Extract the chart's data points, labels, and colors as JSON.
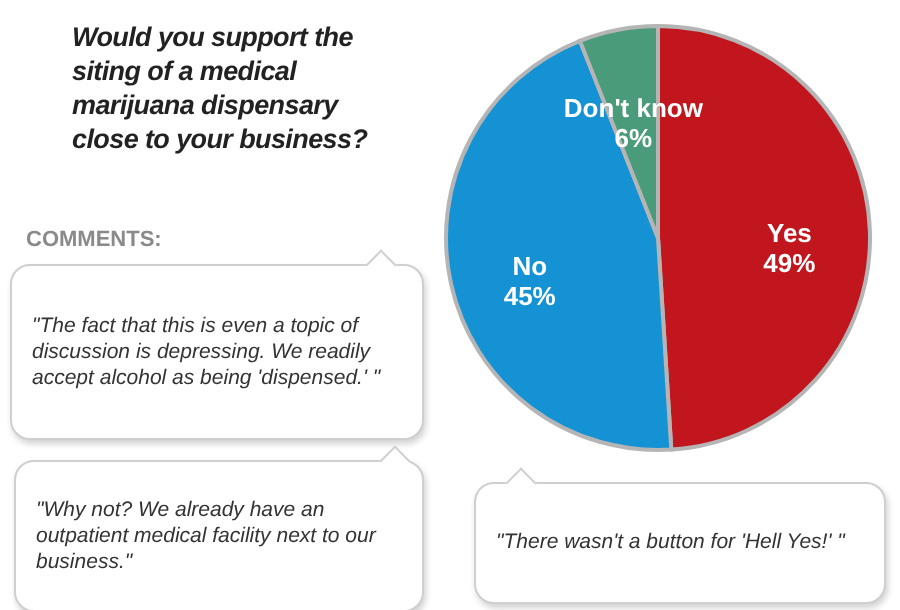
{
  "chart_data": {
    "type": "pie",
    "title": "Would you support the siting of a medical marijuana dispensary close to your business?",
    "categories": [
      "Yes",
      "No",
      "Don't know"
    ],
    "values": [
      49,
      45,
      6
    ],
    "value_labels": [
      "49%",
      "45%",
      "6%"
    ],
    "colors": [
      "#c1161e",
      "#1592d3",
      "#4a9b7a"
    ],
    "annotations": [
      "COMMENTS:",
      "\"The fact that this is even a topic of discussion is depressing. We readily accept alcohol as being 'dispensed.' \"",
      "\"Why not? We already have an outpatient medical facility next to our business.\"",
      "\"There wasn't a button for 'Hell Yes!' \""
    ]
  }
}
